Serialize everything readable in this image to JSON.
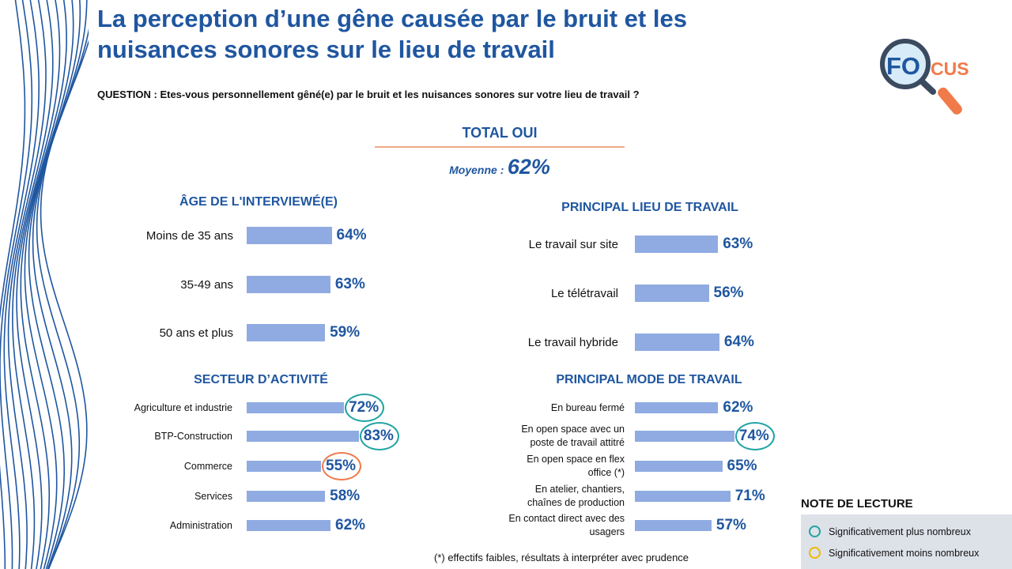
{
  "title": "La perception d’une gêne causée par le bruit et les nuisances sonores sur le lieu de travail",
  "question": "QUESTION : Etes-vous personnellement gêné(e) par le bruit et les nuisances sonores sur votre lieu de travail ?",
  "total": {
    "label": "TOTAL OUI",
    "mean_label": "Moyenne :",
    "mean_value": "62%"
  },
  "logo": {
    "text_a": "FO",
    "text_b": "CUS",
    "icon": "magnifying-glass-icon"
  },
  "colors": {
    "bar": "#8fabe2",
    "value_text": "#1f56a0",
    "plus": "#1fa3a3",
    "minus": "#f07a4a",
    "legend_minus": "#f5b800"
  },
  "chart_data": [
    {
      "type": "bar",
      "orientation": "horizontal",
      "title": "ÂGE DE L'INTERVIEWÉ(E)",
      "categories": [
        "Moins de 35 ans",
        "35-49 ans",
        "50 ans et plus"
      ],
      "values": [
        64,
        63,
        59
      ],
      "labels": [
        "64%",
        "63%",
        "59%"
      ],
      "significance": [
        null,
        null,
        null
      ]
    },
    {
      "type": "bar",
      "orientation": "horizontal",
      "title": "PRINCIPAL LIEU DE TRAVAIL",
      "categories": [
        "Le travail sur site",
        "Le télétravail",
        "Le travail hybride"
      ],
      "values": [
        63,
        56,
        64
      ],
      "labels": [
        "63%",
        "56%",
        "64%"
      ],
      "significance": [
        null,
        null,
        null
      ]
    },
    {
      "type": "bar",
      "orientation": "horizontal",
      "title": "SECTEUR D’ACTIVITÉ",
      "categories": [
        "Agriculture et industrie",
        "BTP-Construction",
        "Commerce",
        "Services",
        "Administration"
      ],
      "values": [
        72,
        83,
        55,
        58,
        62
      ],
      "labels": [
        "72%",
        "83%",
        "55%",
        "58%",
        "62%"
      ],
      "significance": [
        "plus",
        "plus",
        "minus",
        null,
        null
      ]
    },
    {
      "type": "bar",
      "orientation": "horizontal",
      "title": "PRINCIPAL MODE DE TRAVAIL",
      "categories": [
        "En bureau fermé",
        "En open space avec un poste de travail attitré",
        "En open space en flex office (*)",
        "En atelier, chantiers, chaînes de production",
        "En contact direct avec des usagers"
      ],
      "values": [
        62,
        74,
        65,
        71,
        57
      ],
      "labels": [
        "62%",
        "74%",
        "65%",
        "71%",
        "57%"
      ],
      "significance": [
        null,
        "plus",
        null,
        null,
        null
      ]
    }
  ],
  "footnote": "(*) effectifs faibles, résultats à interpréter avec prudence",
  "note": {
    "title": "NOTE DE LECTURE",
    "items": [
      {
        "label": "Significativement plus nombreux",
        "color": "#1fa3a3"
      },
      {
        "label": "Significativement moins nombreux",
        "color": "#f5b800"
      }
    ]
  }
}
